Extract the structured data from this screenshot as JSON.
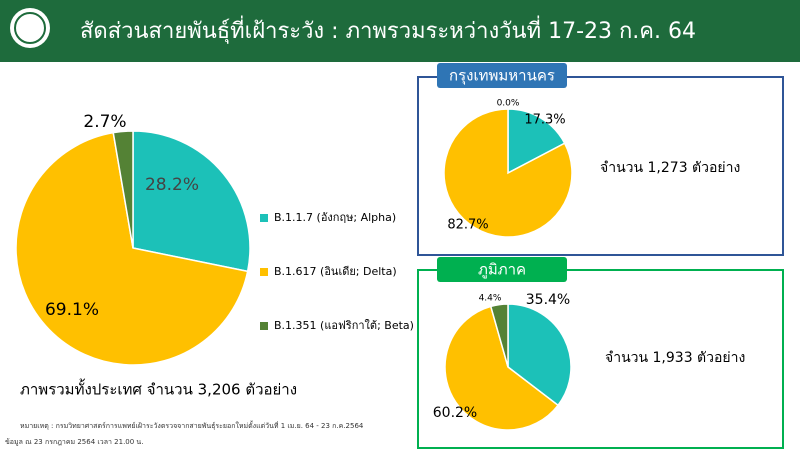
{
  "header": {
    "title": "สัดส่วนสายพันธุ์ที่เฝ้าระวัง : ภาพรวมระหว่างวันที่ 17-23 ก.ค. 64"
  },
  "chart_data": [
    {
      "type": "pie",
      "categories": [
        "B.1.1.7 (อังกฤษ; Alpha)",
        "B.1.617 (อินเดีย; Delta)",
        "B.1.351 (แอฟริกาใต้; Beta)"
      ],
      "values": [
        28.2,
        69.1,
        2.7
      ],
      "value_labels": [
        "28.2%",
        "69.1%",
        "2.7%"
      ],
      "colors": [
        "#1cc1b8",
        "#ffc000",
        "#548235"
      ],
      "caption": "ภาพรวมทั้งประเทศ จำนวน 3,206 ตัวอย่าง"
    },
    {
      "type": "pie",
      "title": "กรุงเทพมหานคร",
      "values": [
        17.3,
        82.7,
        0.0
      ],
      "value_labels": [
        "17.3%",
        "82.7%",
        "0.0%"
      ],
      "colors": [
        "#1cc1b8",
        "#ffc000",
        "#548235"
      ],
      "caption": "จำนวน 1,273 ตัวอย่าง"
    },
    {
      "type": "pie",
      "title": "ภูมิภาค",
      "values": [
        35.4,
        60.2,
        4.4
      ],
      "value_labels": [
        "35.4%",
        "60.2%",
        "4.4%"
      ],
      "colors": [
        "#1cc1b8",
        "#ffc000",
        "#548235"
      ],
      "caption": "จำนวน 1,933 ตัวอย่าง"
    }
  ],
  "footnotes": [
    "หมายเหตุ : กรมวิทยาศาสตร์การแพทย์เฝ้าระวังตรวจจากสายพันธุ์ระยอกใหม่ตั้งแต่วันที่ 1 เม.ย. 64 - 23 ก.ค.2564",
    "ข้อมูล ณ 23 กรกฎาคม 2564 เวลา 21.00 น."
  ]
}
